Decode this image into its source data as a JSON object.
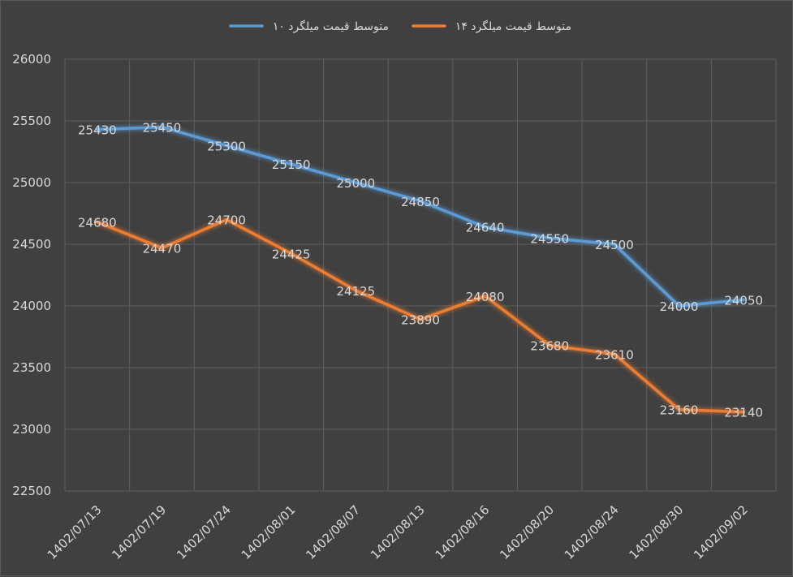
{
  "chart_data": {
    "type": "line",
    "title": "",
    "xlabel": "",
    "ylabel": "",
    "categories": [
      "1402/07/13",
      "1402/07/19",
      "1402/07/24",
      "1402/08/01",
      "1402/08/07",
      "1402/08/13",
      "1402/08/16",
      "1402/08/20",
      "1402/08/24",
      "1402/08/30",
      "1402/09/02"
    ],
    "ylim": [
      22500,
      26000
    ],
    "yticks": [
      22500,
      23000,
      23500,
      24000,
      24500,
      25000,
      25500,
      26000
    ],
    "grid": true,
    "legend_position": "top",
    "series": [
      {
        "name": "متوسط قیمت میلگرد ۱۰",
        "color": "#5b9bd5",
        "values": [
          25430,
          25450,
          25300,
          25150,
          25000,
          24850,
          24640,
          24550,
          24500,
          24000,
          24050
        ]
      },
      {
        "name": "متوسط قیمت میلگرد ۱۴",
        "color": "#ed7d31",
        "values": [
          24680,
          24470,
          24700,
          24425,
          24125,
          23890,
          24080,
          23680,
          23610,
          23160,
          23140
        ]
      }
    ]
  }
}
